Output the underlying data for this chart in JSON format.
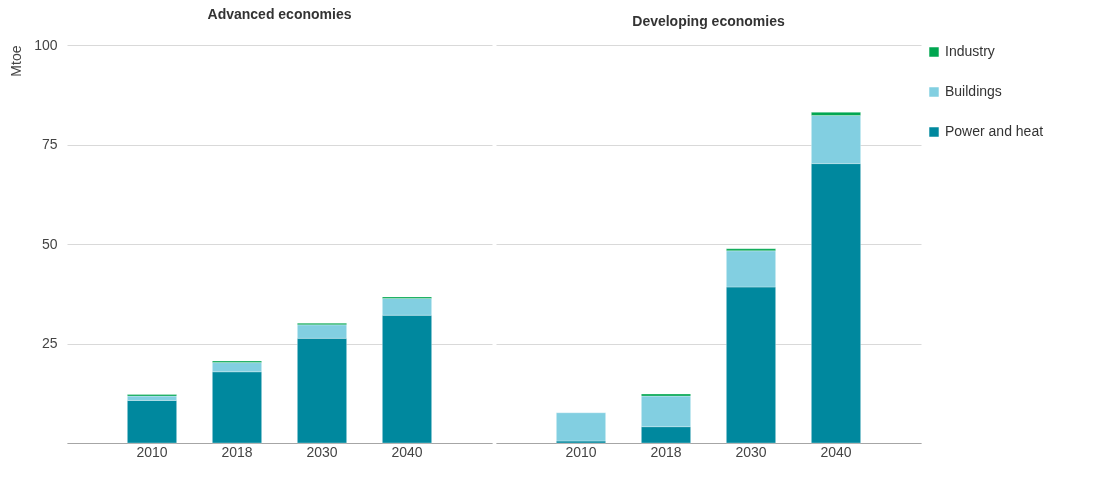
{
  "chart_data": [
    {
      "type": "bar",
      "title": "Advanced economies",
      "ylabel": "Mtoe",
      "categories": [
        "2010",
        "2018",
        "2030",
        "2040"
      ],
      "stacked": true,
      "ylim": [
        0,
        100
      ],
      "yticks": [
        {
          "value": 0,
          "label": null
        },
        25,
        50,
        75,
        100
      ],
      "grid": "y",
      "legend": "right",
      "series": [
        {
          "name": "Power and heat",
          "color": "#00889e",
          "values": [
            10.7,
            17.9,
            26.3,
            32.1
          ]
        },
        {
          "name": "Buildings",
          "color": "#82cfe1",
          "values": [
            1.1,
            2.3,
            3.4,
            4.2
          ]
        },
        {
          "name": "Industry",
          "color": "#00a650",
          "values": [
            0.4,
            0.4,
            0.4,
            0.4
          ]
        }
      ]
    },
    {
      "type": "bar",
      "title": "Developing economies",
      "categories": [
        "2010",
        "2018",
        "2030",
        "2040"
      ],
      "stacked": true,
      "ylim": [
        0,
        100
      ],
      "yticks": [
        {
          "value": 0,
          "label": null
        },
        25,
        50,
        75,
        100
      ],
      "grid": "y",
      "legend": "right",
      "tick_labels": "x",
      "series": [
        {
          "name": "Power and heat",
          "color": "#00889e",
          "values": [
            0.5,
            4.1,
            39.2,
            70.2
          ]
        },
        {
          "name": "Buildings",
          "color": "#82cfe1",
          "values": [
            7.1,
            7.7,
            9.1,
            12.1
          ]
        },
        {
          "name": "Industry",
          "color": "#00a650",
          "values": [
            null,
            0.5,
            0.5,
            0.8
          ]
        }
      ]
    }
  ]
}
